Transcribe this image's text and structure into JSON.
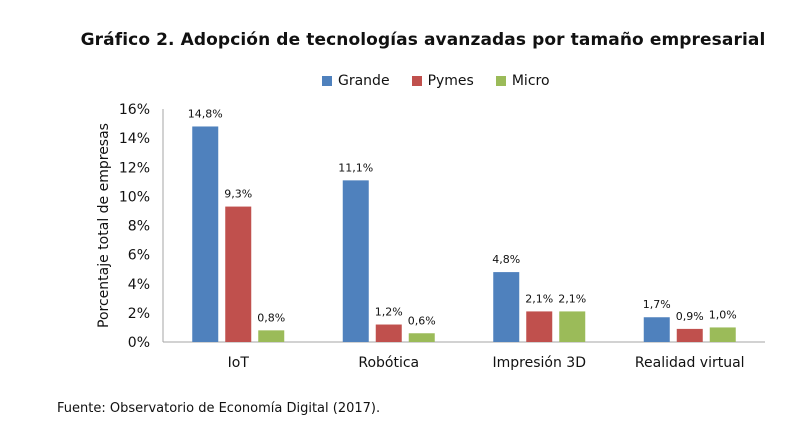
{
  "chart_data": {
    "type": "bar",
    "title": "Gráfico 2. Adopción de tecnologías avanzadas por tamaño empresarial",
    "ylabel": "Porcentaje total de empresas",
    "xlabel": "",
    "ylim": [
      0,
      16
    ],
    "yticks": [
      0,
      2,
      4,
      6,
      8,
      10,
      12,
      14,
      16
    ],
    "ytick_labels": [
      "0%",
      "2%",
      "4%",
      "6%",
      "8%",
      "10%",
      "12%",
      "14%",
      "16%"
    ],
    "categories": [
      "IoT",
      "Robótica",
      "Impresión 3D",
      "Realidad virtual"
    ],
    "legend_position": "top-center",
    "grid": false,
    "series": [
      {
        "name": "Grande",
        "color": "#4f81bd",
        "values": [
          14.8,
          11.1,
          4.8,
          1.7
        ],
        "labels": [
          "14,8%",
          "11,1%",
          "4,8%",
          "1,7%"
        ]
      },
      {
        "name": "Pymes",
        "color": "#c0504d",
        "values": [
          9.3,
          1.2,
          2.1,
          0.9
        ],
        "labels": [
          "9,3%",
          "1,2%",
          "2,1%",
          "0,9%"
        ]
      },
      {
        "name": "Micro",
        "color": "#9bbb59",
        "values": [
          0.8,
          0.6,
          2.1,
          1.0
        ],
        "labels": [
          "0,8%",
          "0,6%",
          "2,1%",
          "1,0%"
        ]
      }
    ]
  },
  "source": "Fuente: Observatorio de Economía Digital (2017)."
}
